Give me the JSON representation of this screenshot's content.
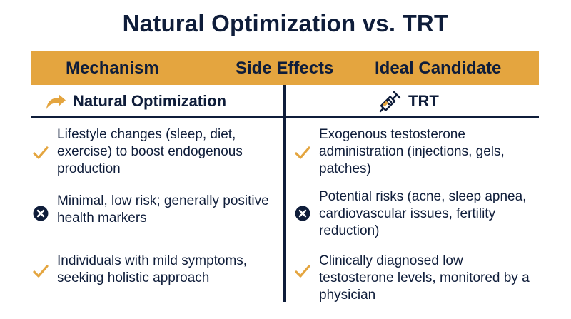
{
  "title": "Natural Optimization vs. TRT",
  "header": [
    "Mechanism",
    "Side Effects",
    "Ideal Candidate"
  ],
  "columns": {
    "left": {
      "label": "Natural Optimization",
      "icon": "arrow-icon"
    },
    "right": {
      "label": "TRT",
      "icon": "syringe-icon"
    }
  },
  "rows": [
    {
      "left": {
        "text": "Lifestyle changes (sleep, diet, exercise) to boost endogenous production",
        "mark": "check-icon"
      },
      "right": {
        "text": "Exogenous testosterone administration (injections, gels, patches)",
        "mark": "check-icon"
      }
    },
    {
      "left": {
        "text": "Minimal, low risk; generally positive health markers",
        "mark": "x-circle-icon"
      },
      "right": {
        "text": "Potential risks (acne, sleep apnea, cardiovascular issues, fertility reduction)",
        "mark": "x-circle-icon"
      }
    },
    {
      "left": {
        "text": "Individuals with mild symptoms, seeking holistic approach",
        "mark": "check-icon"
      },
      "right": {
        "text": "Clinically diagnosed low testosterone levels, monitored by a physician",
        "mark": "check-icon"
      }
    }
  ],
  "colors": {
    "navy": "#0f1d3a",
    "gold": "#e4a53f",
    "divider": "#c9ccd3"
  }
}
